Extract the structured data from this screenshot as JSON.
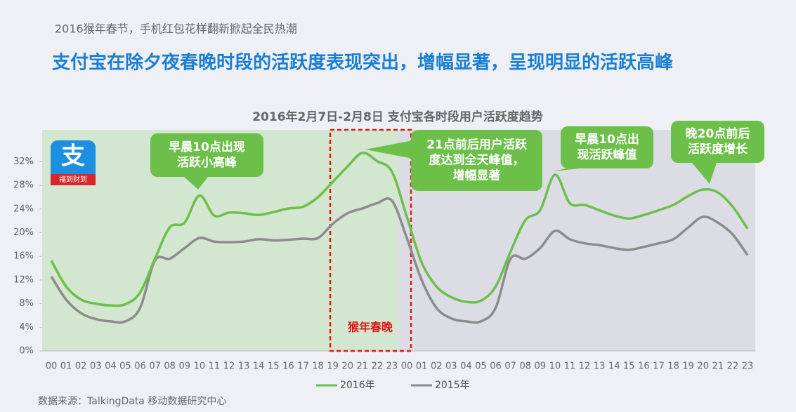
{
  "header": {
    "kicker": "2016猴年春节，手机红包花样翻新掀起全民热潮",
    "headline": "支付宝在除夕夜春晚时段的活跃度表现突出，增幅显著，呈现明显的活跃高峰"
  },
  "logo": {
    "glyph": "支",
    "tagline": "福到财到"
  },
  "chart_data": {
    "type": "line",
    "title": "2016年2月7日-2月8日 支付宝各时段用户活跃度趋势",
    "categories": [
      "00",
      "01",
      "02",
      "03",
      "04",
      "05",
      "06",
      "07",
      "08",
      "09",
      "10",
      "11",
      "12",
      "13",
      "14",
      "15",
      "16",
      "17",
      "18",
      "19",
      "20",
      "21",
      "22",
      "23",
      "00",
      "01",
      "02",
      "03",
      "04",
      "05",
      "06",
      "07",
      "08",
      "09",
      "10",
      "11",
      "12",
      "13",
      "14",
      "15",
      "16",
      "17",
      "18",
      "19",
      "20",
      "21",
      "22",
      "23"
    ],
    "series": [
      {
        "name": "2016年",
        "color": "#6cc04a",
        "values": [
          15.3,
          10.9,
          8.7,
          8.0,
          7.7,
          7.9,
          9.9,
          15.6,
          20.9,
          21.7,
          26.3,
          22.9,
          23.4,
          23.3,
          23.0,
          23.5,
          24.1,
          24.4,
          26.0,
          28.6,
          31.2,
          33.5,
          32.1,
          30.3,
          22.7,
          15.0,
          10.9,
          9.1,
          8.3,
          8.5,
          10.9,
          16.8,
          22.1,
          23.8,
          29.8,
          25.0,
          24.7,
          23.8,
          22.9,
          22.4,
          23.0,
          23.8,
          24.7,
          26.2,
          27.3,
          26.8,
          24.4,
          20.7
        ]
      },
      {
        "name": "2015年",
        "color": "#8c8c8c",
        "values": [
          12.6,
          8.7,
          6.4,
          5.4,
          5.0,
          5.0,
          7.3,
          15.3,
          15.6,
          17.4,
          19.1,
          18.5,
          18.4,
          18.5,
          18.9,
          18.7,
          18.8,
          19.0,
          19.1,
          21.5,
          23.3,
          24.1,
          25.0,
          25.4,
          19.1,
          12.0,
          7.3,
          5.5,
          5.0,
          5.0,
          7.3,
          15.6,
          15.6,
          17.4,
          20.3,
          18.9,
          18.2,
          17.9,
          17.4,
          17.1,
          17.6,
          18.2,
          18.9,
          20.9,
          22.7,
          21.7,
          19.7,
          16.2
        ]
      }
    ],
    "ylim": [
      0,
      37.4
    ],
    "yticks": [
      {
        "value": 0,
        "label": "0%"
      },
      {
        "value": 4,
        "label": "4%"
      },
      {
        "value": 8,
        "label": "8%"
      },
      {
        "value": 12,
        "label": "12%"
      },
      {
        "value": 16,
        "label": "16%"
      },
      {
        "value": 20,
        "label": "20%"
      },
      {
        "value": 24,
        "label": "24%"
      },
      {
        "value": 28,
        "label": "28%"
      },
      {
        "value": 32,
        "label": "32%"
      }
    ],
    "grid": false,
    "legend": "bottom",
    "highlight_label": "猴年春晚",
    "annotations": [
      {
        "lines": [
          "早晨10点出现",
          "活跃小高峰"
        ]
      },
      {
        "lines": [
          "21点前后用户活跃",
          "度达到全天峰值，",
          "增幅显著"
        ]
      },
      {
        "lines": [
          "早晨10点出",
          "现活跃峰值"
        ]
      },
      {
        "lines": [
          "晚20点前后",
          "活跃度增长"
        ]
      }
    ],
    "source": "数据来源：TalkingData 移动数据研究中心"
  }
}
